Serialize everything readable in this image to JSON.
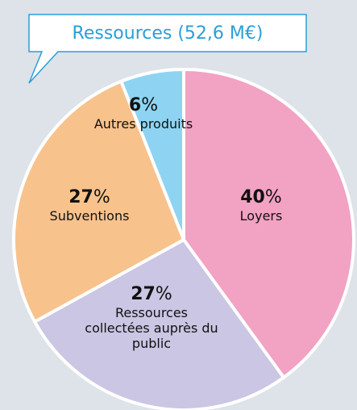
{
  "chart_data": {
    "type": "pie",
    "title": "Ressources (52,6 M€)",
    "categories": [
      "Loyers",
      "Ressources collectées auprès du public",
      "Subventions",
      "Autres produits"
    ],
    "values": [
      40,
      27,
      27,
      6
    ],
    "value_labels": [
      "40%",
      "27%",
      "27%",
      "6%"
    ],
    "colors": [
      "#f2a2c2",
      "#cac6e4",
      "#f8c28c",
      "#8ed4f2"
    ]
  }
}
